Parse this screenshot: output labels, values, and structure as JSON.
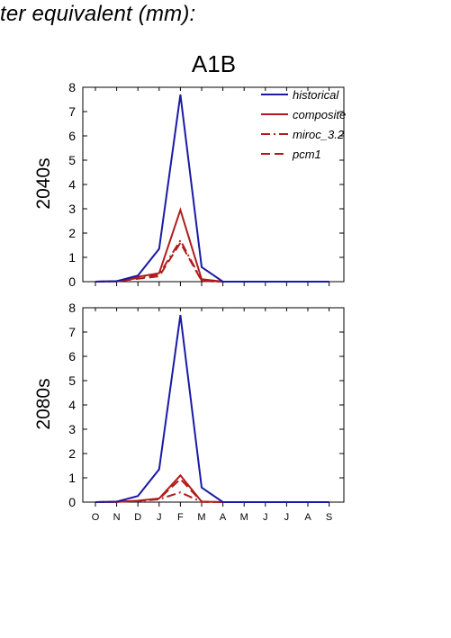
{
  "heading": "ter equivalent (mm):",
  "scenario": "A1B",
  "colors": {
    "historical": "#1a1aa6",
    "future": "#b01c1c",
    "axis": "#000000"
  },
  "chart_data": [
    {
      "type": "line",
      "panel": "2040s",
      "title": "A1B",
      "ylabel": "2040s",
      "ylim": [
        0,
        8
      ],
      "yticks": [
        0,
        1,
        2,
        3,
        4,
        5,
        6,
        7,
        8
      ],
      "categories": [
        "O",
        "N",
        "D",
        "J",
        "F",
        "M",
        "A",
        "M",
        "J",
        "J",
        "A",
        "S"
      ],
      "legend": "top-right",
      "series": [
        {
          "name": "historical",
          "style": "solid",
          "color": "#1a1aa6",
          "values": [
            0,
            0.02,
            0.25,
            1.35,
            7.7,
            0.6,
            0,
            0,
            0,
            0,
            0,
            0
          ]
        },
        {
          "name": "composite",
          "style": "solid",
          "color": "#b01c1c",
          "values": [
            0,
            0.02,
            0.2,
            0.35,
            2.95,
            0.1,
            0,
            0,
            0,
            0,
            0,
            0
          ]
        },
        {
          "name": "miroc_3.2",
          "style": "dashdot",
          "color": "#b01c1c",
          "values": [
            0,
            0.01,
            0.15,
            0.3,
            1.7,
            0.05,
            0,
            0,
            0,
            0,
            0,
            0
          ]
        },
        {
          "name": "pcm1",
          "style": "dashed",
          "color": "#b01c1c",
          "values": [
            0,
            0.01,
            0.12,
            0.22,
            1.6,
            0.03,
            0,
            0,
            0,
            0,
            0,
            0
          ]
        }
      ]
    },
    {
      "type": "line",
      "panel": "2080s",
      "ylabel": "2080s",
      "ylim": [
        0,
        8
      ],
      "yticks": [
        0,
        1,
        2,
        3,
        4,
        5,
        6,
        7,
        8
      ],
      "categories": [
        "O",
        "N",
        "D",
        "J",
        "F",
        "M",
        "A",
        "M",
        "J",
        "J",
        "A",
        "S"
      ],
      "series": [
        {
          "name": "historical",
          "style": "solid",
          "color": "#1a1aa6",
          "values": [
            0,
            0.02,
            0.25,
            1.35,
            7.7,
            0.6,
            0,
            0,
            0,
            0,
            0,
            0
          ]
        },
        {
          "name": "composite",
          "style": "solid",
          "color": "#b01c1c",
          "values": [
            0,
            0.01,
            0.06,
            0.15,
            1.1,
            0.02,
            0,
            0,
            0,
            0,
            0,
            0
          ]
        },
        {
          "name": "miroc_3.2",
          "style": "dashdot",
          "color": "#b01c1c",
          "values": [
            0,
            0.01,
            0.04,
            0.12,
            0.4,
            0.01,
            0,
            0,
            0,
            0,
            0,
            0
          ]
        },
        {
          "name": "pcm1",
          "style": "dashed",
          "color": "#b01c1c",
          "values": [
            0,
            0.01,
            0.05,
            0.14,
            0.95,
            0.02,
            0,
            0,
            0,
            0,
            0,
            0
          ]
        }
      ]
    }
  ]
}
